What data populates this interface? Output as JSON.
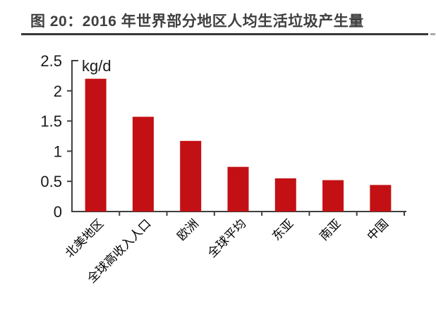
{
  "header": {
    "title": "图 20：2016 年世界部分地区人均生活垃圾产生量"
  },
  "colors": {
    "bar": "#c31014",
    "title_text": "#3f3f3f",
    "title_underline": "#383838",
    "title_underline_dash": "#ababab",
    "axis": "#404040",
    "tick_label": "#1a1a1a",
    "category_label": "#000000"
  },
  "chart_data": {
    "type": "bar",
    "title": "图 20：2016 年世界部分地区人均生活垃圾产生量",
    "unit_label": "kg/d",
    "categories": [
      "北美地区",
      "全球高收入人口",
      "欧洲",
      "全球平均",
      "东亚",
      "南亚",
      "中国"
    ],
    "values": [
      2.2,
      1.57,
      1.17,
      0.74,
      0.55,
      0.52,
      0.44
    ],
    "xlabel": "",
    "ylabel": "kg/d",
    "ylim": [
      0,
      2.5
    ],
    "ytick_step": 0.5,
    "yticks": [
      "0",
      "0.5",
      "1",
      "1.5",
      "2",
      "2.5"
    ],
    "grid": false,
    "legend": false,
    "bar_color": "#c31014",
    "category_label_rotation_deg": 45
  }
}
